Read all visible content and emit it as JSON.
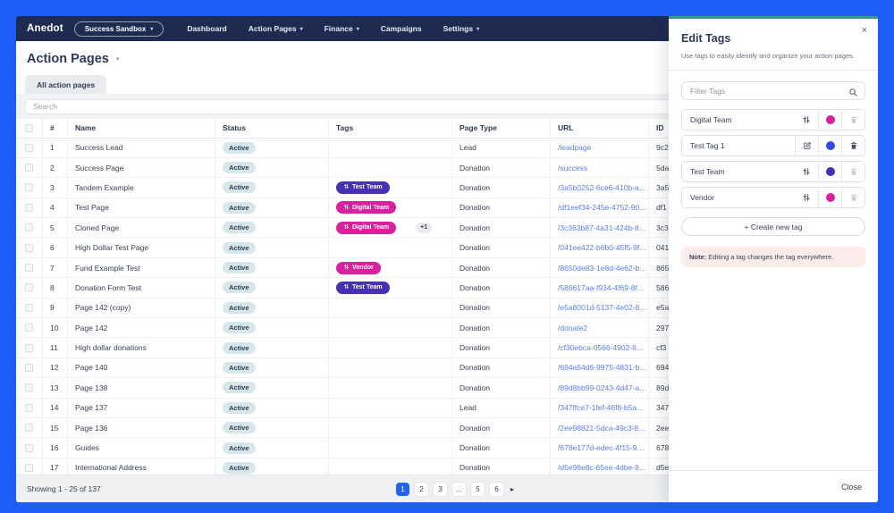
{
  "nav": {
    "logo": "Anedot",
    "org_switcher": "Success Sandbox",
    "items": [
      {
        "label": "Dashboard",
        "caret": false
      },
      {
        "label": "Action Pages",
        "caret": true
      },
      {
        "label": "Finance",
        "caret": true
      },
      {
        "label": "Campaigns",
        "caret": false
      },
      {
        "label": "Settings",
        "caret": true
      }
    ]
  },
  "page": {
    "title": "Action Pages",
    "tab": "All action pages",
    "search_placeholder": "Search"
  },
  "table": {
    "headers": [
      "#",
      "Name",
      "Status",
      "Tags",
      "Page Type",
      "URL",
      "ID"
    ],
    "tag_colors": {
      "Test Team": "#4431b4",
      "Digital Team": "#d9219e",
      "Vendor": "#d9219e"
    },
    "rows": [
      {
        "num": "1",
        "name": "Success Lead",
        "status": "Active",
        "tags": [],
        "extra": "",
        "page_type": "Lead",
        "url": "/leadpage",
        "id": "9c2"
      },
      {
        "num": "2",
        "name": "Success Page",
        "status": "Active",
        "tags": [],
        "extra": "",
        "page_type": "Donation",
        "url": "/success",
        "id": "5da"
      },
      {
        "num": "3",
        "name": "Tandem Example",
        "status": "Active",
        "tags": [
          "Test Team"
        ],
        "extra": "",
        "page_type": "Donation",
        "url": "/3a5b0252-6ce6-410b-a4b...",
        "id": "3a5"
      },
      {
        "num": "4",
        "name": "Test Page",
        "status": "Active",
        "tags": [
          "Digital Team"
        ],
        "extra": "",
        "page_type": "Donation",
        "url": "/df1eef34-245e-4752-90a8...",
        "id": "df1"
      },
      {
        "num": "5",
        "name": "Cloned Page",
        "status": "Active",
        "tags": [
          "Digital Team"
        ],
        "extra": "+1",
        "page_type": "Donation",
        "url": "/3c363b87-4a31-424b-845...",
        "id": "3c3"
      },
      {
        "num": "6",
        "name": "High Dollar Test Page",
        "status": "Active",
        "tags": [],
        "extra": "",
        "page_type": "Donation",
        "url": "/041ee422-b6b0-45f5-9ff5...",
        "id": "041"
      },
      {
        "num": "7",
        "name": "Fund Example Test",
        "status": "Active",
        "tags": [
          "Vendor"
        ],
        "extra": "",
        "page_type": "Donation",
        "url": "/8650de83-1e8d-4e62-bee...",
        "id": "865"
      },
      {
        "num": "8",
        "name": "Donation Form Test",
        "status": "Active",
        "tags": [
          "Test Team"
        ],
        "extra": "",
        "page_type": "Donation",
        "url": "/586617aa-f934-4f69-8f43...",
        "id": "586"
      },
      {
        "num": "9",
        "name": "Page 142 (copy)",
        "status": "Active",
        "tags": [],
        "extra": "",
        "page_type": "Donation",
        "url": "/e5a8001d-5137-4e02-8d3...",
        "id": "e5a"
      },
      {
        "num": "10",
        "name": "Page 142",
        "status": "Active",
        "tags": [],
        "extra": "",
        "page_type": "Donation",
        "url": "/donate2",
        "id": "297"
      },
      {
        "num": "11",
        "name": "High dollar donations",
        "status": "Active",
        "tags": [],
        "extra": "",
        "page_type": "Donation",
        "url": "/cf30ebca-0566-4902-8bd7...",
        "id": "cf3"
      },
      {
        "num": "12",
        "name": "Page 140",
        "status": "Active",
        "tags": [],
        "extra": "",
        "page_type": "Donation",
        "url": "/694a54d6-9975-4831-b3a...",
        "id": "694"
      },
      {
        "num": "13",
        "name": "Page 138",
        "status": "Active",
        "tags": [],
        "extra": "",
        "page_type": "Donation",
        "url": "/89d8bb99-0243-4d47-a30...",
        "id": "89d"
      },
      {
        "num": "14",
        "name": "Page 137",
        "status": "Active",
        "tags": [],
        "extra": "",
        "page_type": "Lead",
        "url": "/347ffce7-1fef-46f8-b5a2-...",
        "id": "347"
      },
      {
        "num": "15",
        "name": "Page 136",
        "status": "Active",
        "tags": [],
        "extra": "",
        "page_type": "Donation",
        "url": "/2ee98821-5dca-49c3-891...",
        "id": "2ee"
      },
      {
        "num": "16",
        "name": "Guides",
        "status": "Active",
        "tags": [],
        "extra": "",
        "page_type": "Donation",
        "url": "/678e177d-edec-4f15-97b2...",
        "id": "678"
      },
      {
        "num": "17",
        "name": "International Address",
        "status": "Active",
        "tags": [],
        "extra": "",
        "page_type": "Donation",
        "url": "/d5e96e8c-65ee-4dbe-9fc7...",
        "id": "d5e"
      }
    ]
  },
  "footer": {
    "showing": "Showing 1 - 25 of 137",
    "pages": [
      "1",
      "2",
      "3",
      "...",
      "5",
      "6"
    ],
    "active_page": "1",
    "next_icon": "▸"
  },
  "panel": {
    "title": "Edit Tags",
    "subtitle": "Use tags to easily identify and organize your action pages.",
    "filter_placeholder": "Filter Tags",
    "tags": [
      {
        "name": "Digital Team",
        "action_icon": "sliders-icon",
        "dot_color": "#d9219e",
        "trash_enabled": false
      },
      {
        "name": "Test Tag 1",
        "action_icon": "edit-icon",
        "dot_color": "#3449e8",
        "trash_enabled": true
      },
      {
        "name": "Test Team",
        "action_icon": "sliders-icon",
        "dot_color": "#4431b4",
        "trash_enabled": false
      },
      {
        "name": "Vendor",
        "action_icon": "sliders-icon",
        "dot_color": "#d9219e",
        "trash_enabled": false
      }
    ],
    "create_label": "+ Create new tag",
    "note_bold": "Note:",
    "note_text": " Editing a tag changes the tag everywhere.",
    "close_icon": "×",
    "close_label": "Close"
  },
  "colors": {
    "frame": "#1d5cf5",
    "nav_bg": "#1d2b50",
    "accent_teal": "#38988a",
    "link": "#5b7df5",
    "active_badge_bg": "#d8e7ea",
    "pagination_active": "#2563eb"
  }
}
